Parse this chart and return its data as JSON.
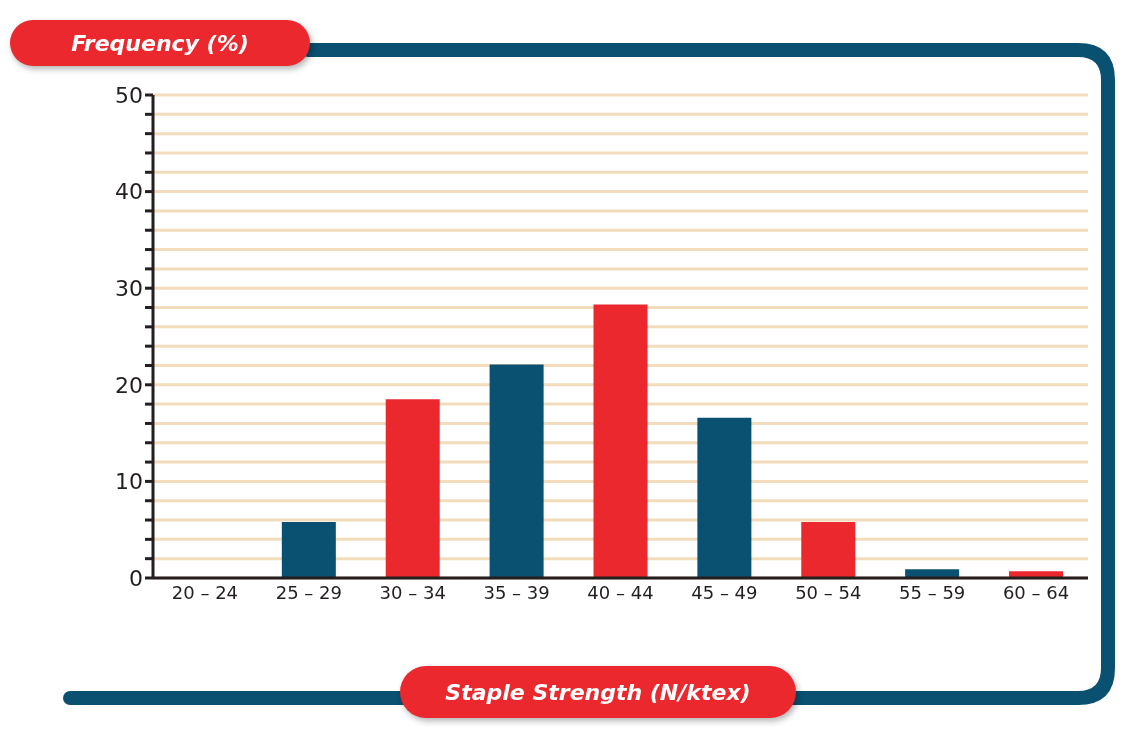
{
  "chart_data": {
    "type": "bar",
    "xlabel": "Staple Strength (N/ktex)",
    "ylabel": "Frequency (%)",
    "categories": [
      "20 – 24",
      "25 – 29",
      "30 – 34",
      "35 – 39",
      "40 – 44",
      "45 – 49",
      "50 – 54",
      "55 – 59",
      "60 – 64"
    ],
    "values": [
      0,
      5.8,
      18.5,
      22.1,
      28.3,
      16.6,
      5.8,
      0.9,
      0.7
    ],
    "colors": [
      "#0a5070",
      "#0a5070",
      "#ea282e",
      "#0a5070",
      "#ea282e",
      "#0a5070",
      "#ea282e",
      "#0a5070",
      "#ea282e"
    ],
    "ylim": [
      0,
      50
    ],
    "yticks": [
      0,
      {
        "value": 2,
        "label": null
      },
      {
        "value": 4,
        "label": null
      },
      {
        "value": 6,
        "label": null
      },
      {
        "value": 8,
        "label": null
      },
      10,
      {
        "value": 12,
        "label": null
      },
      {
        "value": 14,
        "label": null
      },
      {
        "value": 16,
        "label": null
      },
      {
        "value": 18,
        "label": null
      },
      20,
      {
        "value": 22,
        "label": null
      },
      {
        "value": 24,
        "label": null
      },
      {
        "value": 26,
        "label": null
      },
      {
        "value": 28,
        "label": null
      },
      30,
      {
        "value": 32,
        "label": null
      },
      {
        "value": 34,
        "label": null
      },
      {
        "value": 36,
        "label": null
      },
      {
        "value": 38,
        "label": null
      },
      40,
      {
        "value": 42,
        "label": null
      },
      {
        "value": 44,
        "label": null
      },
      {
        "value": 46,
        "label": null
      },
      {
        "value": 48,
        "label": null
      },
      50
    ],
    "grid": "y",
    "legend": false
  }
}
